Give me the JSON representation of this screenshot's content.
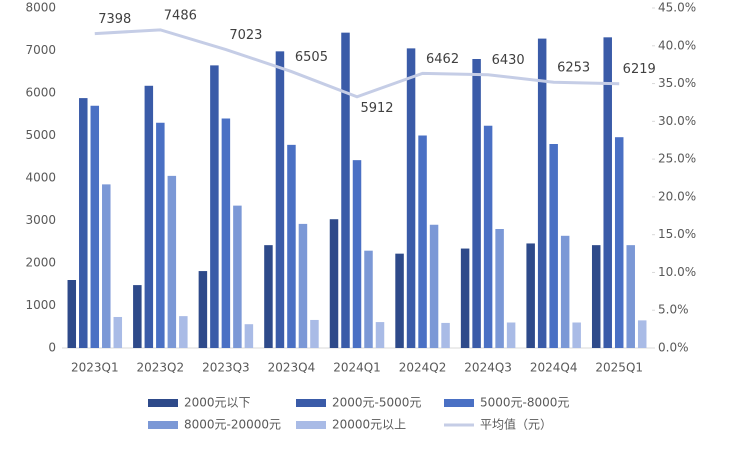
{
  "chart_data": {
    "type": "bar",
    "categories": [
      "2023Q1",
      "2023Q2",
      "2023Q3",
      "2023Q4",
      "2024Q1",
      "2024Q2",
      "2024Q3",
      "2024Q4",
      "2025Q1"
    ],
    "series": [
      {
        "name": "2000元以下",
        "color": "#2e4a8a",
        "values": [
          1600,
          1480,
          1810,
          2420,
          3030,
          2220,
          2340,
          2460,
          2420
        ]
      },
      {
        "name": "2000元-5000元",
        "color": "#3a5ba8",
        "values": [
          5880,
          6170,
          6650,
          6980,
          7420,
          7050,
          6800,
          7280,
          7310
        ]
      },
      {
        "name": "5000元-8000元",
        "color": "#4a70c4",
        "values": [
          5700,
          5300,
          5400,
          4780,
          4420,
          5000,
          5230,
          4800,
          4960
        ]
      },
      {
        "name": "8000元-20000元",
        "color": "#7b98d6",
        "values": [
          3850,
          4050,
          3350,
          2920,
          2290,
          2900,
          2800,
          2640,
          2420
        ]
      },
      {
        "name": "20000元以上",
        "color": "#a9bbe6",
        "values": [
          730,
          750,
          560,
          660,
          610,
          590,
          600,
          600,
          650
        ]
      },
      {
        "name": "平均值（元）",
        "color": "#c5cde6",
        "type": "line",
        "values": [
          7398,
          7486,
          7023,
          6505,
          5912,
          6462,
          6430,
          6253,
          6219
        ]
      }
    ],
    "ylim": [
      0,
      8000
    ],
    "yticks": [
      0,
      1000,
      2000,
      3000,
      4000,
      5000,
      6000,
      7000,
      8000
    ],
    "y2lim": [
      0,
      45
    ],
    "y2ticks": [
      {
        "value": 0,
        "label": "0.0%"
      },
      {
        "value": 5,
        "label": "5.0%"
      },
      {
        "value": 10,
        "label": "10.0%"
      },
      {
        "value": 15,
        "label": "15.0%"
      },
      {
        "value": 20,
        "label": "20.0%"
      },
      {
        "value": 25,
        "label": "25.0%"
      },
      {
        "value": 30,
        "label": "30.0%"
      },
      {
        "value": 35,
        "label": "35.0%"
      },
      {
        "value": 40,
        "label": "40.0%"
      },
      {
        "value": 45,
        "label": "45.0%"
      }
    ],
    "legend": "bottom"
  }
}
